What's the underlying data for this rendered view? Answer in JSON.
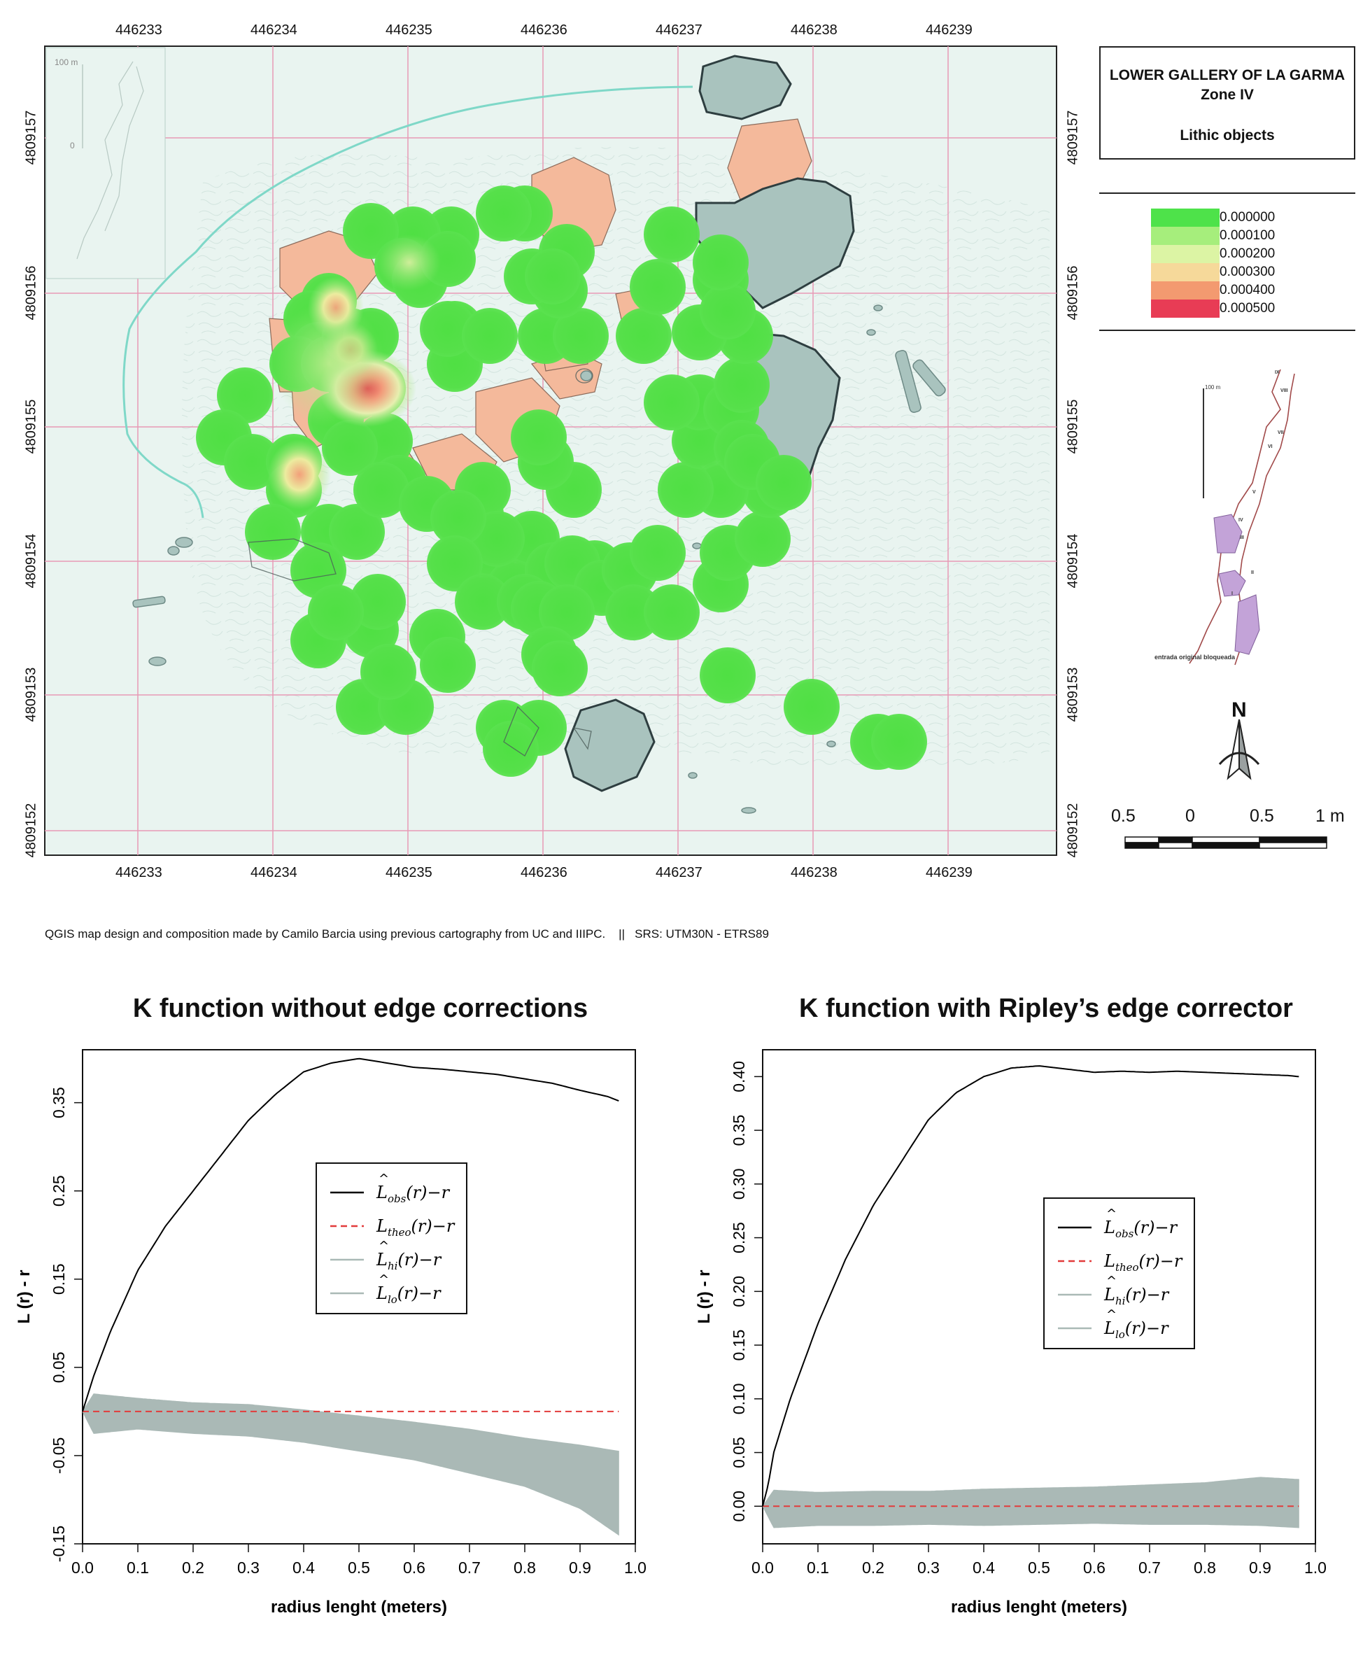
{
  "map": {
    "x_ticks": [
      "446233",
      "446234",
      "446235",
      "446236",
      "446237",
      "446238",
      "446239"
    ],
    "y_ticks": [
      "4809157",
      "4809156",
      "4809155",
      "4809154",
      "4809153",
      "4809152"
    ],
    "inset_scale_label": "100 m",
    "inset_zero_label": "0"
  },
  "title_box": {
    "line1": "LOWER GALLERY OF LA GARMA",
    "line2": "Zone IV",
    "line3": "Lithic objects"
  },
  "legend": {
    "items": [
      {
        "label": "0.000000",
        "color": "#4ee24a"
      },
      {
        "label": "0.000100",
        "color": "#a6ee7c"
      },
      {
        "label": "0.000200",
        "color": "#dcf4a4"
      },
      {
        "label": "0.000300",
        "color": "#f6d99a"
      },
      {
        "label": "0.000400",
        "color": "#f39a70"
      },
      {
        "label": "0.000500",
        "color": "#e83c55"
      }
    ]
  },
  "location_map": {
    "scale_label": "100 m",
    "caption": "entrada original bloqueada",
    "zone_labels": [
      "IX",
      "VIII",
      "VII",
      "VI",
      "V",
      "IV",
      "III",
      "II",
      "I"
    ]
  },
  "north_arrow": {
    "label": "N"
  },
  "scalebar": {
    "labels": [
      "0.5",
      "0",
      "0.5",
      "1 m"
    ]
  },
  "credits": "QGIS map design and composition made by Camilo Barcia using previous cartography from UC and IIIPC.    ||   SRS: UTM30N - ETRS89",
  "colors": {
    "map_bg": "#e9f4f0",
    "grid": "#e79ab5",
    "hotspot": "#52e24a",
    "rock_salmon": "#f4b99b",
    "rock_gray": "#a9c3be",
    "river": "#7fd8c8",
    "observed": "#000000",
    "theoretical": "#e23b3b",
    "envelope": "#aab9b6"
  },
  "chart_data": [
    {
      "type": "line",
      "title": "K function without edge corrections",
      "xlabel": "radius lenght (meters)",
      "ylabel": "L (r) - r",
      "xlim": [
        0.0,
        1.0
      ],
      "ylim": [
        -0.15,
        0.41
      ],
      "x_ticks": [
        0.0,
        0.1,
        0.2,
        0.3,
        0.4,
        0.5,
        0.6,
        0.7,
        0.8,
        0.9,
        1.0
      ],
      "y_ticks": [
        -0.15,
        -0.05,
        0.05,
        0.15,
        0.25,
        0.35
      ],
      "series": [
        {
          "name": "L̂obs(r)−r",
          "x": [
            0.0,
            0.01,
            0.02,
            0.05,
            0.1,
            0.15,
            0.2,
            0.25,
            0.3,
            0.35,
            0.4,
            0.45,
            0.5,
            0.55,
            0.6,
            0.65,
            0.7,
            0.75,
            0.8,
            0.85,
            0.9,
            0.95,
            0.97
          ],
          "y": [
            0.0,
            0.02,
            0.04,
            0.09,
            0.16,
            0.21,
            0.25,
            0.29,
            0.33,
            0.36,
            0.385,
            0.395,
            0.4,
            0.395,
            0.39,
            0.388,
            0.385,
            0.382,
            0.377,
            0.372,
            0.364,
            0.357,
            0.352
          ]
        },
        {
          "name": "Ltheo(r)−r",
          "x": [
            0.0,
            0.97
          ],
          "y": [
            0.0,
            0.0
          ]
        },
        {
          "name": "L̂hi(r)−r",
          "x": [
            0.0,
            0.02,
            0.1,
            0.2,
            0.3,
            0.4,
            0.5,
            0.6,
            0.7,
            0.8,
            0.9,
            0.97
          ],
          "y": [
            0.0,
            0.02,
            0.015,
            0.01,
            0.008,
            0.002,
            -0.005,
            -0.012,
            -0.02,
            -0.03,
            -0.038,
            -0.045
          ]
        },
        {
          "name": "L̂lo(r)−r",
          "x": [
            0.0,
            0.02,
            0.1,
            0.2,
            0.3,
            0.4,
            0.5,
            0.6,
            0.7,
            0.8,
            0.9,
            0.97
          ],
          "y": [
            0.0,
            -0.025,
            -0.02,
            -0.025,
            -0.028,
            -0.035,
            -0.045,
            -0.055,
            -0.07,
            -0.085,
            -0.11,
            -0.14
          ]
        }
      ]
    },
    {
      "type": "line",
      "title": "K function with Ripley’s edge corrector",
      "xlabel": "radius lenght (meters)",
      "ylabel": "L (r) - r",
      "xlim": [
        0.0,
        1.0
      ],
      "ylim": [
        -0.035,
        0.425
      ],
      "x_ticks": [
        0.0,
        0.1,
        0.2,
        0.3,
        0.4,
        0.5,
        0.6,
        0.7,
        0.8,
        0.9,
        1.0
      ],
      "y_ticks": [
        0.0,
        0.05,
        0.1,
        0.15,
        0.2,
        0.25,
        0.3,
        0.35,
        0.4
      ],
      "series": [
        {
          "name": "L̂obs(r)−r",
          "x": [
            0.0,
            0.01,
            0.02,
            0.05,
            0.1,
            0.15,
            0.2,
            0.25,
            0.3,
            0.35,
            0.4,
            0.45,
            0.5,
            0.55,
            0.6,
            0.65,
            0.7,
            0.75,
            0.8,
            0.85,
            0.9,
            0.95,
            0.97
          ],
          "y": [
            0.0,
            0.02,
            0.05,
            0.1,
            0.17,
            0.23,
            0.28,
            0.32,
            0.36,
            0.385,
            0.4,
            0.408,
            0.41,
            0.407,
            0.404,
            0.405,
            0.404,
            0.405,
            0.404,
            0.403,
            0.402,
            0.401,
            0.4
          ]
        },
        {
          "name": "Ltheo(r)−r",
          "x": [
            0.0,
            0.97
          ],
          "y": [
            0.0,
            0.0
          ]
        },
        {
          "name": "L̂hi(r)−r",
          "x": [
            0.0,
            0.02,
            0.1,
            0.2,
            0.3,
            0.4,
            0.5,
            0.6,
            0.7,
            0.8,
            0.9,
            0.97
          ],
          "y": [
            0.0,
            0.015,
            0.013,
            0.014,
            0.014,
            0.016,
            0.017,
            0.018,
            0.02,
            0.022,
            0.027,
            0.025
          ]
        },
        {
          "name": "L̂lo(r)−r",
          "x": [
            0.0,
            0.02,
            0.1,
            0.2,
            0.3,
            0.4,
            0.5,
            0.6,
            0.7,
            0.8,
            0.9,
            0.97
          ],
          "y": [
            0.0,
            -0.02,
            -0.018,
            -0.018,
            -0.017,
            -0.018,
            -0.017,
            -0.016,
            -0.017,
            -0.017,
            -0.018,
            -0.02
          ]
        }
      ]
    }
  ]
}
